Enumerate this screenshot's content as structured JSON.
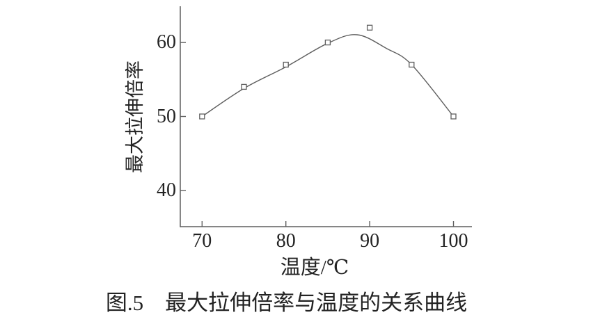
{
  "figure": {
    "caption": "图.5　最大拉伸倍率与温度的关系曲线"
  },
  "chart_data": {
    "type": "line",
    "title": "",
    "xlabel": "温度/℃",
    "ylabel": "最大拉伸倍率",
    "x": [
      70,
      75,
      80,
      85,
      90,
      95,
      100
    ],
    "values": [
      50,
      54,
      57,
      60,
      62,
      57,
      50
    ],
    "series": [
      {
        "name": "最大拉伸倍率",
        "values": [
          50,
          54,
          57,
          60,
          62,
          57,
          50
        ]
      }
    ],
    "x_ticks": [
      70,
      80,
      90,
      100
    ],
    "y_ticks": [
      40,
      50,
      60
    ],
    "xlim": [
      67.4,
      102.2
    ],
    "ylim": [
      35.1,
      64.9
    ],
    "grid": false,
    "legend": "none",
    "marker": "open-square",
    "line_color": "#5f5f5f",
    "marker_fill": "#ffffff",
    "text_color": "#232323",
    "background": "#ffffff",
    "fit_curve": [
      [
        70,
        50
      ],
      [
        75,
        53.8
      ],
      [
        80,
        56.7
      ],
      [
        85,
        59.9
      ],
      [
        88.5,
        61.05
      ],
      [
        92,
        59.2
      ],
      [
        95,
        57
      ],
      [
        100,
        50
      ]
    ],
    "fit_curve_peak": {
      "x": 88.5,
      "y": 61
    }
  }
}
